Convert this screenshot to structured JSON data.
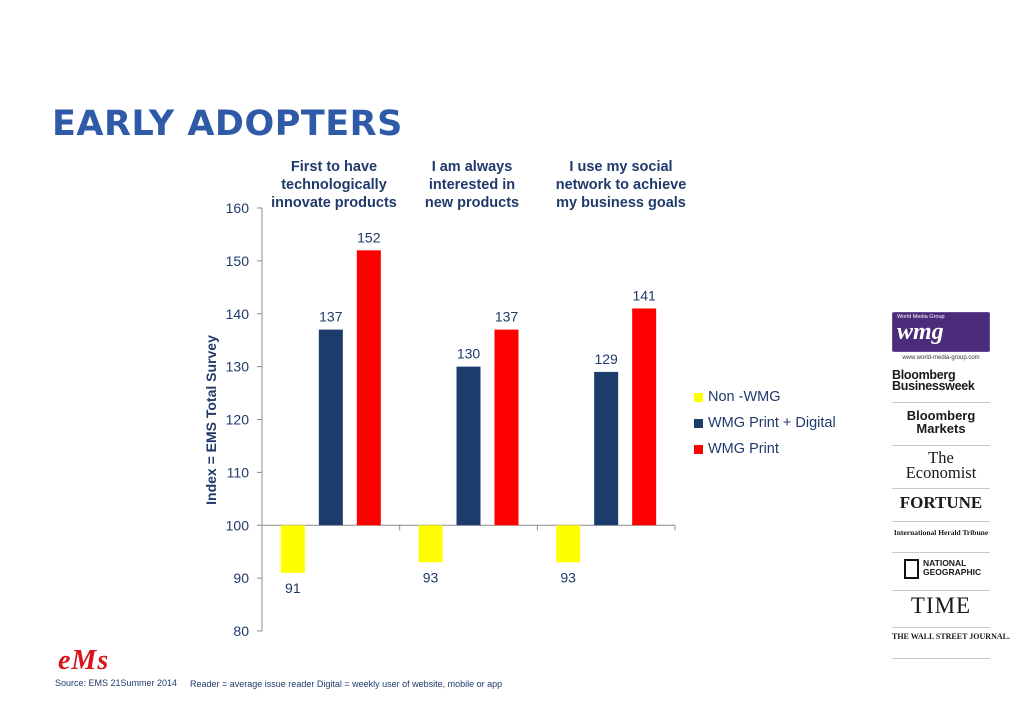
{
  "page": {
    "title": "EARLY ADOPTERS",
    "source": "Source: EMS  21Summer 2014",
    "footnote": "Reader = average issue reader Digital = weekly user of website, mobile or app",
    "ems_logo": "eMs"
  },
  "chart_data": {
    "type": "bar",
    "ylabel": "Index = EMS Total Survey",
    "ylim": [
      80,
      160
    ],
    "yticks": [
      80,
      90,
      100,
      110,
      120,
      130,
      140,
      150,
      160
    ],
    "baseline": 100,
    "categories": [
      "First to have technologically innovate products",
      "I am always interested in new products",
      "I use my social network to achieve my business goals"
    ],
    "category_lines": [
      [
        "First to have",
        "technologically",
        "innovate products"
      ],
      [
        "I am always",
        "interested in",
        "new products"
      ],
      [
        "I use my social",
        "network to achieve",
        "my business goals"
      ]
    ],
    "series": [
      {
        "name": "Non -WMG",
        "color": "#ffff00",
        "values": [
          91,
          93,
          93
        ]
      },
      {
        "name": "WMG Print + Digital",
        "color": "#1c3c6b",
        "values": [
          137,
          130,
          129
        ]
      },
      {
        "name": "WMG Print",
        "color": "#ff0000",
        "values": [
          152,
          137,
          141
        ]
      }
    ],
    "legend_position": "right",
    "grid": false,
    "label_color": "#1f3a6b"
  },
  "logos": {
    "wmg_small": "World Media Group",
    "wmg_big": "wmg",
    "wmg_url": "www.world-media-group.com",
    "bloomberg_businessweek": [
      "Bloomberg",
      "Businessweek"
    ],
    "bloomberg_markets": [
      "Bloomberg",
      "Markets"
    ],
    "economist": [
      "The",
      "Economist"
    ],
    "fortune": "FORTUNE",
    "iht": "International Herald Tribune",
    "natgeo": [
      "NATIONAL",
      "GEOGRAPHIC"
    ],
    "time": "TIME",
    "wsj": "THE WALL STREET JOURNAL."
  }
}
